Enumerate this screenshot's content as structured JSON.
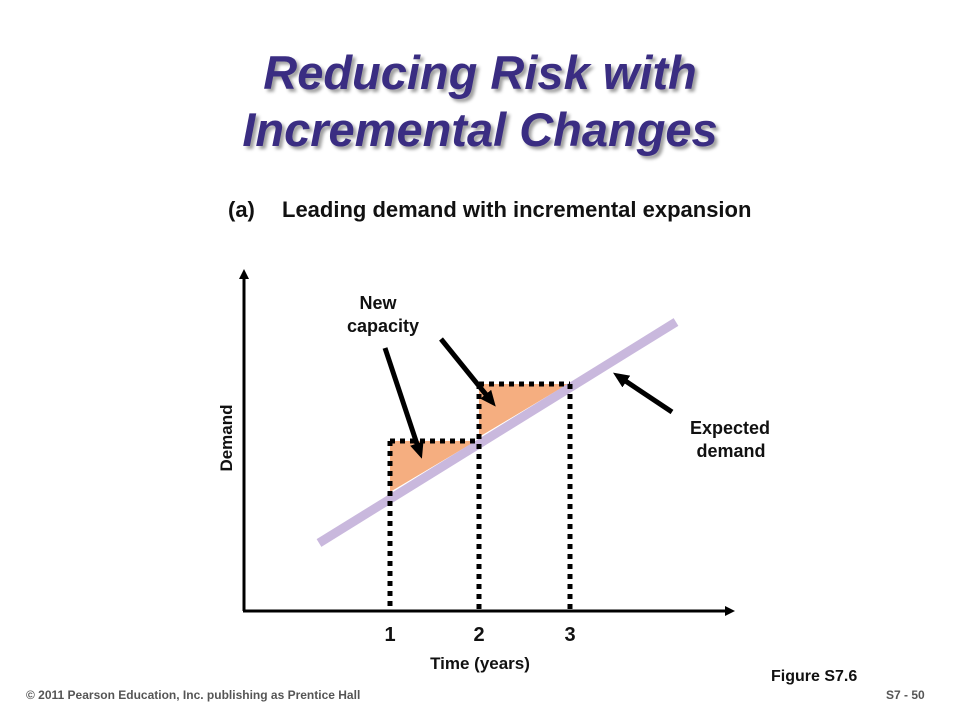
{
  "slide": {
    "title_line1": "Reducing Risk with",
    "title_line2": "Incremental Changes",
    "subtitle_letter": "(a)",
    "subtitle_text": "Leading demand with incremental expansion",
    "figure_ref": "Figure S7.6",
    "footer_copyright": "© 2011 Pearson Education, Inc. publishing as Prentice Hall",
    "page_number": "S7 - 50"
  },
  "diagram": {
    "y_axis_label": "Demand",
    "x_axis_label": "Time (years)",
    "x_ticks": [
      "1",
      "2",
      "3"
    ],
    "new_capacity_label_line1": "New",
    "new_capacity_label_line2": "capacity",
    "expected_demand_label_line1": "Expected",
    "expected_demand_label_line2": "demand"
  },
  "colors": {
    "title": "#3a2d82",
    "demand_line": "#c9b8dd",
    "capacity_fill": "#f5ae80",
    "capacity_border": "#000000"
  }
}
